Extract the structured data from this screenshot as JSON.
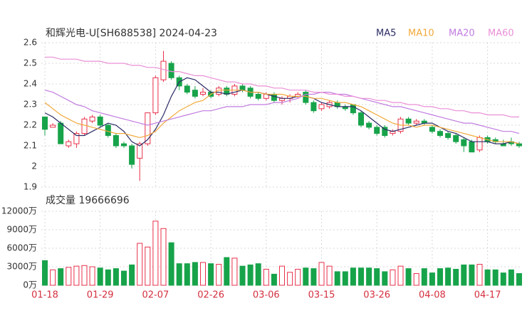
{
  "chart_data": [
    {
      "type": "candlestick",
      "title": "和辉光电-U[SH688538] 2024-04-23",
      "open": [
        2.24,
        2.19,
        2.21,
        2.1,
        2.11,
        2.16,
        2.22,
        2.24,
        2.2,
        2.15,
        2.11,
        2.1,
        2.04,
        2.11,
        2.26,
        2.42,
        2.5,
        2.43,
        2.39,
        2.37,
        2.35,
        2.36,
        2.35,
        2.38,
        2.35,
        2.39,
        2.38,
        2.35,
        2.33,
        2.35,
        2.32,
        2.33,
        2.34,
        2.36,
        2.31,
        2.28,
        2.29,
        2.31,
        2.29,
        2.3,
        2.26,
        2.21,
        2.19,
        2.19,
        2.16,
        2.17,
        2.23,
        2.21,
        2.22,
        2.19,
        2.17,
        2.16,
        2.15,
        2.13,
        2.12,
        2.08,
        2.14,
        2.13,
        2.11,
        2.12,
        2.11
      ],
      "high": [
        2.24,
        2.21,
        2.22,
        2.13,
        2.17,
        2.24,
        2.25,
        2.25,
        2.21,
        2.16,
        2.12,
        2.11,
        2.12,
        2.26,
        2.44,
        2.56,
        2.51,
        2.44,
        2.4,
        2.39,
        2.38,
        2.37,
        2.39,
        2.39,
        2.4,
        2.4,
        2.39,
        2.36,
        2.36,
        2.36,
        2.34,
        2.35,
        2.36,
        2.37,
        2.32,
        2.31,
        2.32,
        2.32,
        2.3,
        2.3,
        2.27,
        2.22,
        2.2,
        2.2,
        2.18,
        2.24,
        2.24,
        2.23,
        2.23,
        2.2,
        2.18,
        2.17,
        2.16,
        2.14,
        2.13,
        2.15,
        2.15,
        2.14,
        2.13,
        2.14,
        2.12
      ],
      "low": [
        2.15,
        2.19,
        2.11,
        2.09,
        2.09,
        2.15,
        2.21,
        2.19,
        2.14,
        2.09,
        2.09,
        1.99,
        1.93,
        2.1,
        2.25,
        2.41,
        2.42,
        2.37,
        2.35,
        2.33,
        2.34,
        2.33,
        2.34,
        2.34,
        2.34,
        2.36,
        2.33,
        2.32,
        2.32,
        2.31,
        2.3,
        2.31,
        2.33,
        2.3,
        2.26,
        2.27,
        2.28,
        2.28,
        2.27,
        2.25,
        2.19,
        2.18,
        2.15,
        2.14,
        2.15,
        2.16,
        2.2,
        2.2,
        2.2,
        2.16,
        2.14,
        2.13,
        2.11,
        2.07,
        2.07,
        2.07,
        2.11,
        2.11,
        2.1,
        2.1,
        2.09
      ],
      "close": [
        2.18,
        2.2,
        2.11,
        2.12,
        2.16,
        2.23,
        2.24,
        2.2,
        2.15,
        2.1,
        2.1,
        2.01,
        2.11,
        2.26,
        2.43,
        2.51,
        2.43,
        2.39,
        2.36,
        2.34,
        2.36,
        2.34,
        2.38,
        2.35,
        2.39,
        2.37,
        2.34,
        2.33,
        2.35,
        2.32,
        2.33,
        2.34,
        2.35,
        2.31,
        2.27,
        2.3,
        2.31,
        2.29,
        2.28,
        2.26,
        2.2,
        2.19,
        2.16,
        2.15,
        2.17,
        2.23,
        2.21,
        2.22,
        2.21,
        2.17,
        2.15,
        2.14,
        2.12,
        2.1,
        2.07,
        2.14,
        2.12,
        2.12,
        2.1,
        2.11,
        2.1
      ],
      "up_color": "#e8304a",
      "down_color": "#17a34a",
      "series": [
        {
          "name": "MA5",
          "color": "#2b2b66",
          "values": [
            2.26,
            2.24,
            2.21,
            2.18,
            2.15,
            2.15,
            2.17,
            2.19,
            2.21,
            2.2,
            2.17,
            2.12,
            2.1,
            2.13,
            2.18,
            2.25,
            2.34,
            2.41,
            2.43,
            2.42,
            2.39,
            2.36,
            2.36,
            2.35,
            2.36,
            2.37,
            2.36,
            2.36,
            2.35,
            2.34,
            2.33,
            2.33,
            2.34,
            2.34,
            2.33,
            2.31,
            2.3,
            2.29,
            2.29,
            2.29,
            2.27,
            2.24,
            2.21,
            2.18,
            2.17,
            2.18,
            2.19,
            2.2,
            2.21,
            2.21,
            2.19,
            2.17,
            2.16,
            2.14,
            2.12,
            2.12,
            2.12,
            2.11,
            2.11,
            2.12,
            2.11
          ]
        },
        {
          "name": "MA10",
          "color": "#f2a93b",
          "values": [
            2.31,
            2.28,
            2.25,
            2.23,
            2.21,
            2.2,
            2.19,
            2.18,
            2.17,
            2.16,
            2.16,
            2.15,
            2.14,
            2.15,
            2.17,
            2.21,
            2.24,
            2.27,
            2.29,
            2.31,
            2.32,
            2.35,
            2.37,
            2.37,
            2.37,
            2.37,
            2.36,
            2.36,
            2.35,
            2.35,
            2.35,
            2.34,
            2.34,
            2.34,
            2.33,
            2.33,
            2.32,
            2.31,
            2.31,
            2.3,
            2.29,
            2.27,
            2.25,
            2.23,
            2.21,
            2.2,
            2.2,
            2.19,
            2.2,
            2.2,
            2.19,
            2.18,
            2.17,
            2.16,
            2.15,
            2.14,
            2.13,
            2.12,
            2.12,
            2.12,
            2.11
          ]
        },
        {
          "name": "MA20",
          "color": "#c17be0",
          "values": [
            2.37,
            2.36,
            2.34,
            2.32,
            2.3,
            2.29,
            2.27,
            2.26,
            2.25,
            2.24,
            2.23,
            2.22,
            2.21,
            2.2,
            2.21,
            2.22,
            2.23,
            2.24,
            2.25,
            2.26,
            2.27,
            2.27,
            2.28,
            2.29,
            2.29,
            2.29,
            2.3,
            2.3,
            2.3,
            2.31,
            2.31,
            2.32,
            2.33,
            2.35,
            2.35,
            2.36,
            2.36,
            2.35,
            2.35,
            2.34,
            2.33,
            2.32,
            2.31,
            2.3,
            2.29,
            2.29,
            2.28,
            2.27,
            2.26,
            2.25,
            2.24,
            2.23,
            2.22,
            2.21,
            2.21,
            2.2,
            2.19,
            2.18,
            2.17,
            2.17,
            2.16
          ]
        },
        {
          "name": "MA60",
          "color": "#ea8fd6",
          "values": [
            2.53,
            2.53,
            2.52,
            2.52,
            2.52,
            2.51,
            2.51,
            2.51,
            2.5,
            2.5,
            2.5,
            2.49,
            2.49,
            2.48,
            2.48,
            2.47,
            2.46,
            2.46,
            2.45,
            2.44,
            2.44,
            2.43,
            2.42,
            2.41,
            2.41,
            2.4,
            2.4,
            2.39,
            2.39,
            2.38,
            2.38,
            2.37,
            2.37,
            2.37,
            2.36,
            2.36,
            2.35,
            2.35,
            2.34,
            2.34,
            2.33,
            2.33,
            2.32,
            2.32,
            2.31,
            2.31,
            2.3,
            2.3,
            2.29,
            2.29,
            2.28,
            2.28,
            2.27,
            2.27,
            2.26,
            2.26,
            2.25,
            2.25,
            2.25,
            2.24,
            2.24
          ]
        }
      ],
      "ylim": [
        1.9,
        2.6
      ],
      "yticks": [
        1.9,
        2,
        2.1,
        2.2,
        2.3,
        2.4,
        2.5,
        2.6
      ],
      "grid": true
    },
    {
      "type": "bar",
      "title": "成交量 19666696",
      "categories": [
        "01-18",
        null,
        null,
        null,
        null,
        null,
        null,
        "01-29",
        null,
        null,
        null,
        null,
        null,
        null,
        "02-07",
        null,
        null,
        null,
        null,
        null,
        null,
        "02-26",
        null,
        null,
        null,
        null,
        null,
        null,
        "03-06",
        null,
        null,
        null,
        null,
        null,
        null,
        "03-15",
        null,
        null,
        null,
        null,
        null,
        null,
        "03-26",
        null,
        null,
        null,
        null,
        null,
        null,
        "04-08",
        null,
        null,
        null,
        null,
        null,
        null,
        "04-17",
        null,
        null,
        null,
        null
      ],
      "values": [
        4000,
        2500,
        2700,
        2900,
        3100,
        3200,
        3000,
        2800,
        2500,
        2700,
        2300,
        3300,
        6800,
        6200,
        10400,
        9200,
        6900,
        3500,
        3500,
        3700,
        3700,
        3500,
        3400,
        4500,
        4400,
        3100,
        3300,
        3500,
        2600,
        1800,
        3100,
        2100,
        2600,
        2800,
        2700,
        3700,
        3100,
        2200,
        2200,
        2800,
        2800,
        2800,
        2700,
        2200,
        2500,
        3100,
        2700,
        1900,
        2700,
        2000,
        2700,
        2800,
        2600,
        3300,
        3300,
        3400,
        2500,
        2500,
        2000,
        2500,
        1900
      ],
      "ylim": [
        0,
        12000
      ],
      "yticks": [
        {
          "value": 0,
          "label": "0万"
        },
        {
          "value": 3000,
          "label": "3000万"
        },
        {
          "value": 6000,
          "label": "6000万"
        },
        {
          "value": 9000,
          "label": "9000万"
        },
        {
          "value": 12000,
          "label": "12000万"
        }
      ],
      "grid": true
    }
  ]
}
